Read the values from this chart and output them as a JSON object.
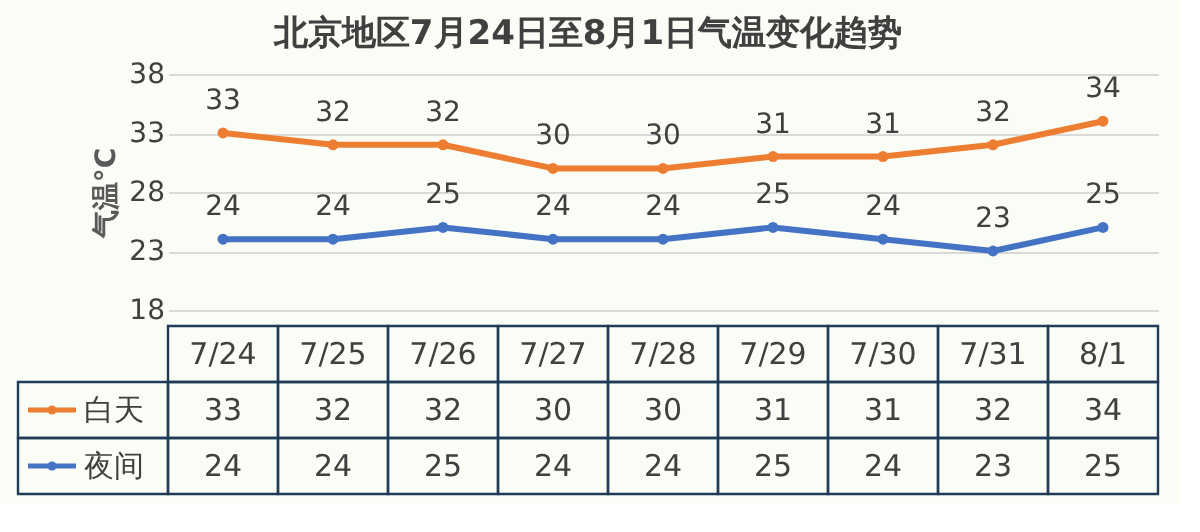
{
  "chart_data": {
    "type": "line",
    "title": "北京地区7月24日至8月1日气温变化趋势",
    "ylabel": "气温°C",
    "categories": [
      "7/24",
      "7/25",
      "7/26",
      "7/27",
      "7/28",
      "7/29",
      "7/30",
      "7/31",
      "8/1"
    ],
    "series": [
      {
        "name": "白天",
        "color": "#ed7d31",
        "values": [
          33,
          32,
          32,
          30,
          30,
          31,
          31,
          32,
          34
        ]
      },
      {
        "name": "夜间",
        "color": "#4472c4",
        "values": [
          24,
          24,
          25,
          24,
          24,
          25,
          24,
          23,
          25
        ]
      }
    ],
    "annotations": [
      {
        "text": "33",
        "x": "7/24",
        "y": 33
      },
      {
        "text": "32",
        "x": "7/25",
        "y": 32
      },
      {
        "text": "32",
        "x": "7/26",
        "y": 32
      },
      {
        "text": "30",
        "x": "7/27",
        "y": 30
      },
      {
        "text": "30",
        "x": "7/28",
        "y": 30
      },
      {
        "text": "31",
        "x": "7/29",
        "y": 31
      },
      {
        "text": "31",
        "x": "7/30",
        "y": 31
      },
      {
        "text": "32",
        "x": "7/31",
        "y": 32
      },
      {
        "text": "34",
        "x": "8/1",
        "y": 34
      },
      {
        "text": "24",
        "x": "7/24",
        "y": 24
      },
      {
        "text": "24",
        "x": "7/25",
        "y": 24
      },
      {
        "text": "25",
        "x": "7/26",
        "y": 25
      },
      {
        "text": "24",
        "x": "7/27",
        "y": 24
      },
      {
        "text": "24",
        "x": "7/28",
        "y": 24
      },
      {
        "text": "25",
        "x": "7/29",
        "y": 25
      },
      {
        "text": "24",
        "x": "7/30",
        "y": 24
      },
      {
        "text": "23",
        "x": "7/31",
        "y": 23
      },
      {
        "text": "25",
        "x": "8/1",
        "y": 25
      }
    ],
    "ylim": [
      18,
      38
    ],
    "yticks": [
      18,
      23,
      28,
      33,
      38
    ],
    "grid": "y",
    "data_labels": true,
    "marker": "circle",
    "legend": "bottom left"
  }
}
